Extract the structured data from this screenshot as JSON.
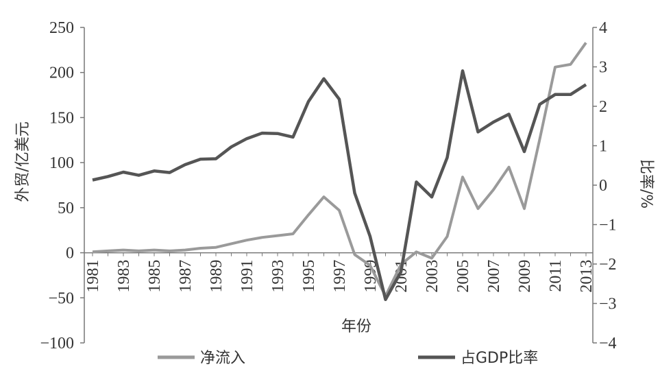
{
  "chart_data": {
    "type": "line",
    "title": "",
    "xlabel": "年份",
    "ylabel": "外贸/亿美元",
    "y2label": "比率/%",
    "x": [
      1981,
      1982,
      1983,
      1984,
      1985,
      1986,
      1987,
      1988,
      1989,
      1990,
      1991,
      1992,
      1993,
      1994,
      1995,
      1996,
      1997,
      1998,
      1999,
      2000,
      2001,
      2002,
      2003,
      2004,
      2005,
      2006,
      2007,
      2008,
      2009,
      2010,
      2011,
      2012,
      2013
    ],
    "x_tick_labels": [
      "1981",
      "1983",
      "1985",
      "1987",
      "1989",
      "1991",
      "1993",
      "1995",
      "1997",
      "1999",
      "2001",
      "2003",
      "2005",
      "2007",
      "2009",
      "2011",
      "2013"
    ],
    "ylim": [
      -100,
      250
    ],
    "y_ticks": [
      "250",
      "200",
      "150",
      "100",
      "50",
      "0",
      "−50",
      "−100"
    ],
    "y2lim": [
      -4,
      4
    ],
    "y2_ticks": [
      "4",
      "3",
      "2",
      "1",
      "0",
      "−1",
      "−2",
      "−3",
      "−4"
    ],
    "legend_position": "bottom",
    "grid": false,
    "series": [
      {
        "name": "净流入",
        "axis": "left",
        "color": "#9a9a9a",
        "values": [
          1,
          2,
          3,
          2,
          3,
          2,
          3,
          5,
          6,
          10,
          14,
          17,
          19,
          21,
          42,
          62,
          47,
          -2,
          -14,
          -48,
          -13,
          1,
          -6,
          18,
          84,
          49,
          70,
          95,
          49,
          126,
          206,
          209,
          233
        ]
      },
      {
        "name": "占GDP比率",
        "axis": "right",
        "color": "#555555",
        "values": [
          0.13,
          0.22,
          0.33,
          0.25,
          0.36,
          0.32,
          0.52,
          0.66,
          0.67,
          0.97,
          1.18,
          1.32,
          1.31,
          1.22,
          2.12,
          2.7,
          2.18,
          -0.2,
          -1.3,
          -2.9,
          -2.2,
          0.08,
          -0.3,
          0.7,
          2.9,
          1.35,
          1.6,
          1.8,
          0.85,
          2.05,
          2.3,
          2.3,
          2.55
        ]
      }
    ]
  }
}
